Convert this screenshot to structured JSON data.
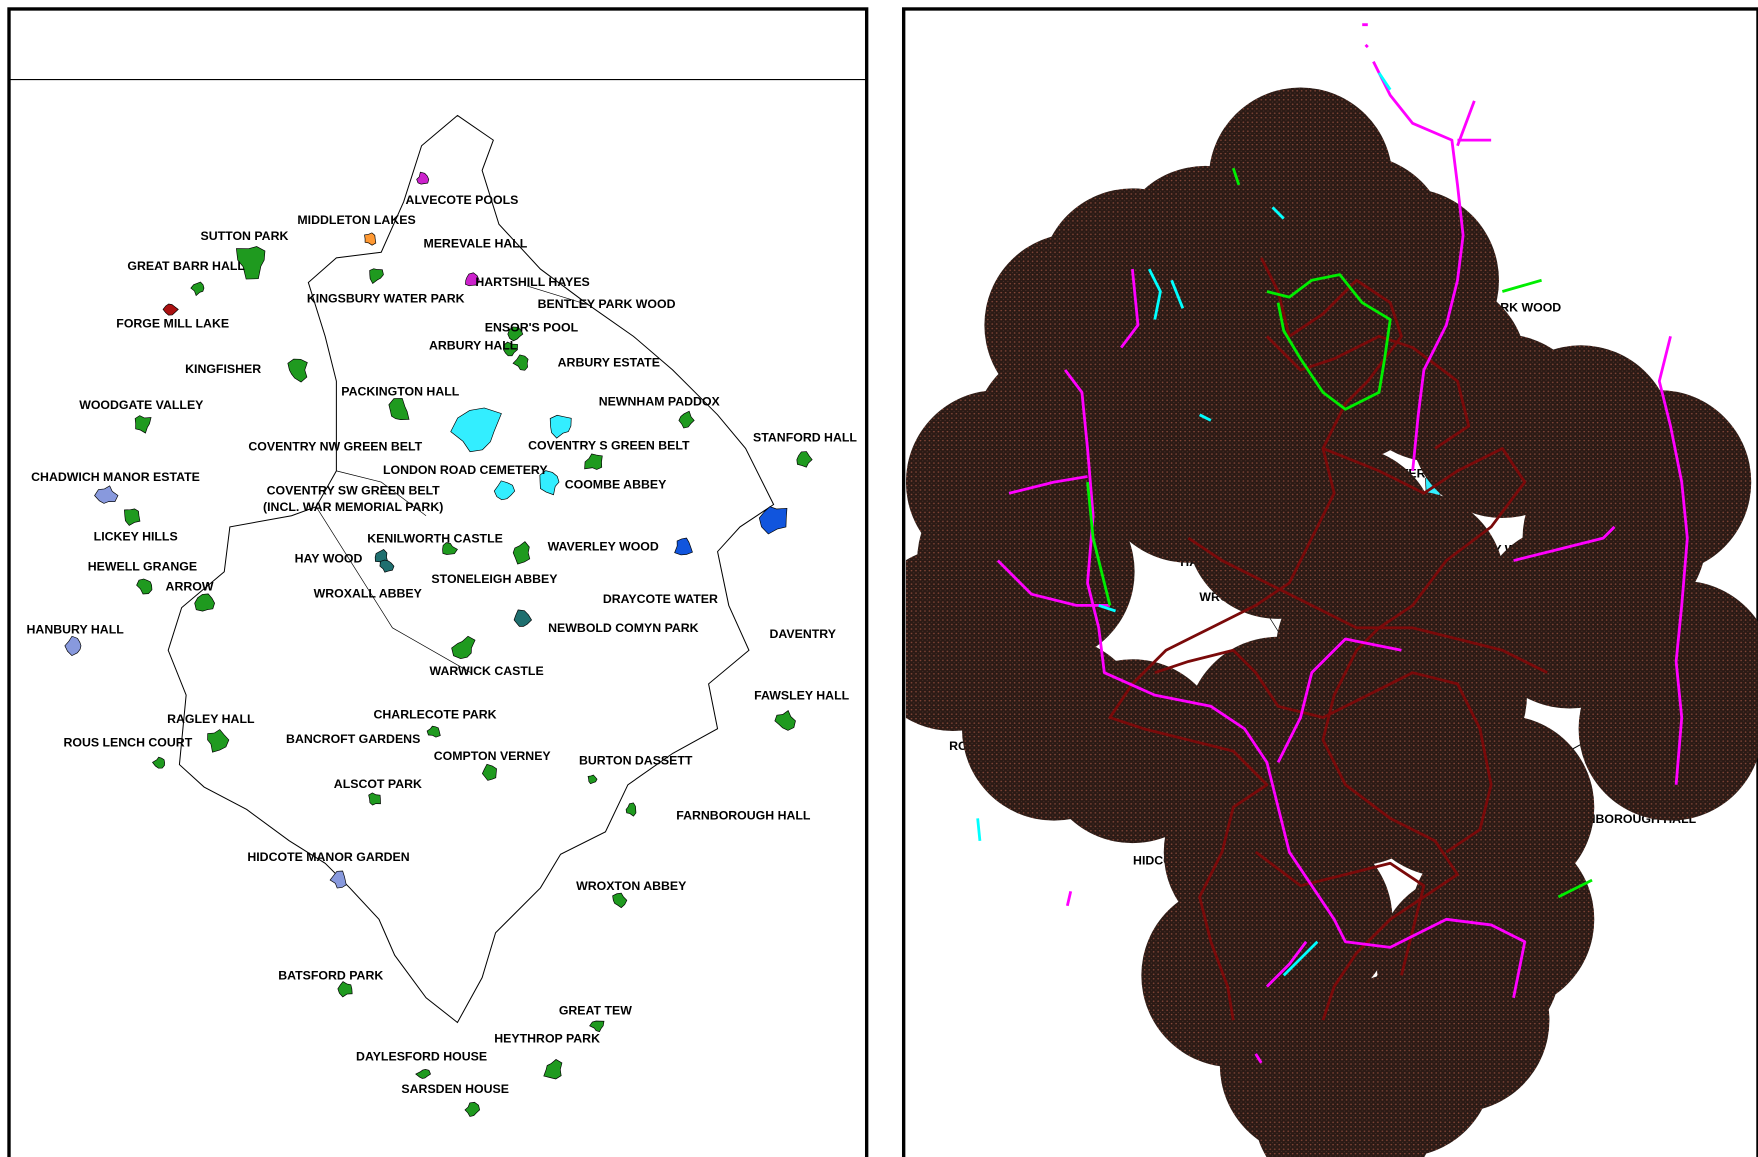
{
  "labels": [
    "ALVECOTE POOLS",
    "MIDDLETON LAKES",
    "SUTTON PARK",
    "MEREVALE HALL",
    "GREAT BARR HALL",
    "HARTSHILL HAYES",
    "KINGSBURY WATER PARK",
    "BENTLEY PARK WOOD",
    "FORGE MILL LAKE",
    "ENSOR'S POOL",
    "ARBURY HALL",
    "ARBURY ESTATE",
    "KINGFISHER",
    "PACKINGTON HALL",
    "NEWNHAM PADDOX",
    "WOODGATE VALLEY",
    "STANFORD HALL",
    "COVENTRY NW GREEN BELT",
    "COVENTRY S GREEN BELT",
    "LONDON ROAD CEMETERY",
    "CHADWICH MANOR ESTATE",
    "COVENTRY SW GREEN BELT",
    "(INCL. WAR MEMORIAL PARK)",
    "COOMBE ABBEY",
    "LICKEY HILLS",
    "KENILWORTH CASTLE",
    "WAVERLEY WOOD",
    "HAY WOOD",
    "HEWELL GRANGE",
    "STONELEIGH ABBEY",
    "WROXALL ABBEY",
    "ARROW",
    "DRAYCOTE WATER",
    "HANBURY HALL",
    "NEWBOLD COMYN PARK",
    "DAVENTRY",
    "WARWICK CASTLE",
    "FAWSLEY HALL",
    "RAGLEY HALL",
    "CHARLECOTE PARK",
    "BANCROFT GARDENS",
    "ROUS LENCH COURT",
    "COMPTON VERNEY",
    "BURTON DASSETT",
    "ALSCOT PARK",
    "FARNBOROUGH HALL",
    "HIDCOTE MANOR GARDEN",
    "WROXTON ABBEY",
    "BATSFORD PARK",
    "GREAT TEW",
    "HEYTHROP PARK",
    "DAYLESFORD HOUSE",
    "SARSDEN HOUSE"
  ]
}
